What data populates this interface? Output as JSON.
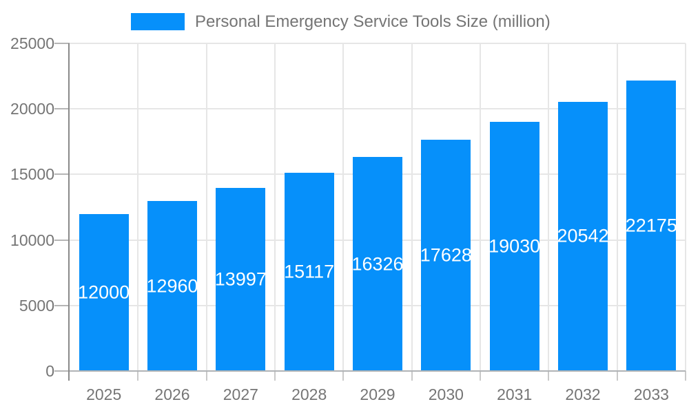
{
  "legend": {
    "label": "Personal Emergency Service Tools Size (million)"
  },
  "chart_data": {
    "type": "bar",
    "title": "Personal Emergency Service Tools Size (million)",
    "categories": [
      "2025",
      "2026",
      "2027",
      "2028",
      "2029",
      "2030",
      "2031",
      "2032",
      "2033"
    ],
    "series": [
      {
        "name": "Personal Emergency Service Tools Size (million)",
        "values": [
          12000,
          12960,
          13997,
          15117,
          16326,
          17628,
          19030,
          20542,
          22175
        ]
      }
    ],
    "xlabel": "",
    "ylabel": "",
    "ylim": [
      0,
      25000
    ],
    "yticks": [
      0,
      5000,
      10000,
      15000,
      20000,
      25000
    ],
    "grid": true,
    "legend_position": "top",
    "bar_color": "#0690fa",
    "value_labels": "inside-middle",
    "value_label_color": "#ffffff",
    "axis_text_color": "#757575",
    "gridline_color": "#e6e6e6"
  }
}
